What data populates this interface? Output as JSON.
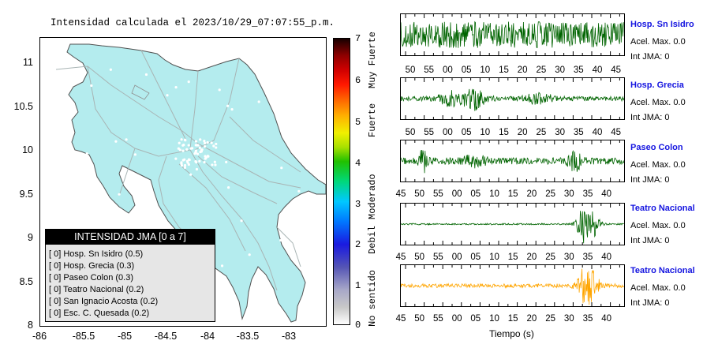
{
  "map": {
    "title": "Intensidad calculada el 2023/10/29_07:07:55_p.m.",
    "y_ticks": [
      "11",
      "10.5",
      "10",
      "9.5",
      "9",
      "8.5",
      "8"
    ],
    "x_ticks": [
      "-86",
      "-85.5",
      "-85",
      "-84.5",
      "-84",
      "-83.5",
      "-83"
    ],
    "land_color": "#b4ecee",
    "road_color": "#a8b4b4",
    "legend": {
      "title": "INTENSIDAD JMA [0 a 7]",
      "items": [
        "[ 0]  Hosp. Sn Isidro (0.5)",
        "[ 0]  Hosp. Grecia (0.3)",
        "[ 0]  Paseo Colon (0.3)",
        "[ 0]  Teatro Nacional (0.2)",
        "[ 0]  San Ignacio Acosta (0.2)",
        "[ 0]  Esc. C. Quesada (0.2)"
      ]
    }
  },
  "colorbar": {
    "ticks": [
      "7",
      "6",
      "5",
      "4",
      "3",
      "2",
      "1",
      "0"
    ],
    "labels": [
      "Muy Fuerte",
      "Fuerte",
      "Moderado",
      "Debil",
      "No sentido"
    ]
  },
  "traces": [
    {
      "station": "Hosp. Sn Isidro",
      "accel": "Acel. Max. 0.0",
      "jma": "Int JMA: 0",
      "color": "#006400",
      "ticks": [
        "50",
        "55",
        "00",
        "05",
        "10",
        "15",
        "20",
        "25",
        "30",
        "35",
        "40",
        "45"
      ]
    },
    {
      "station": "Hosp. Grecia",
      "accel": "Acel. Max. 0.0",
      "jma": "Int JMA: 0",
      "color": "#006400",
      "ticks": [
        "50",
        "55",
        "00",
        "05",
        "10",
        "15",
        "20",
        "25",
        "30",
        "35",
        "40",
        "45"
      ]
    },
    {
      "station": "Paseo Colon",
      "accel": "Acel. Max. 0.0",
      "jma": "Int JMA: 0",
      "color": "#006400",
      "ticks": [
        "45",
        "50",
        "55",
        "00",
        "05",
        "10",
        "15",
        "20",
        "25",
        "30",
        "35",
        "40"
      ]
    },
    {
      "station": "Teatro Nacional",
      "accel": "Acel. Max. 0.0",
      "jma": "Int JMA: 0",
      "color": "#006400",
      "ticks": [
        "45",
        "50",
        "55",
        "00",
        "05",
        "10",
        "15",
        "20",
        "25",
        "30",
        "35",
        "40"
      ]
    },
    {
      "station": "Teatro Nacional",
      "accel": "Acel. Max. 0.0",
      "jma": "Int JMA: 0",
      "color": "#ffa500",
      "ticks": [
        "45",
        "50",
        "55",
        "00",
        "05",
        "10",
        "15",
        "20",
        "25",
        "30",
        "35",
        "40"
      ]
    }
  ],
  "x_axis_label": "Tiempo (s)"
}
